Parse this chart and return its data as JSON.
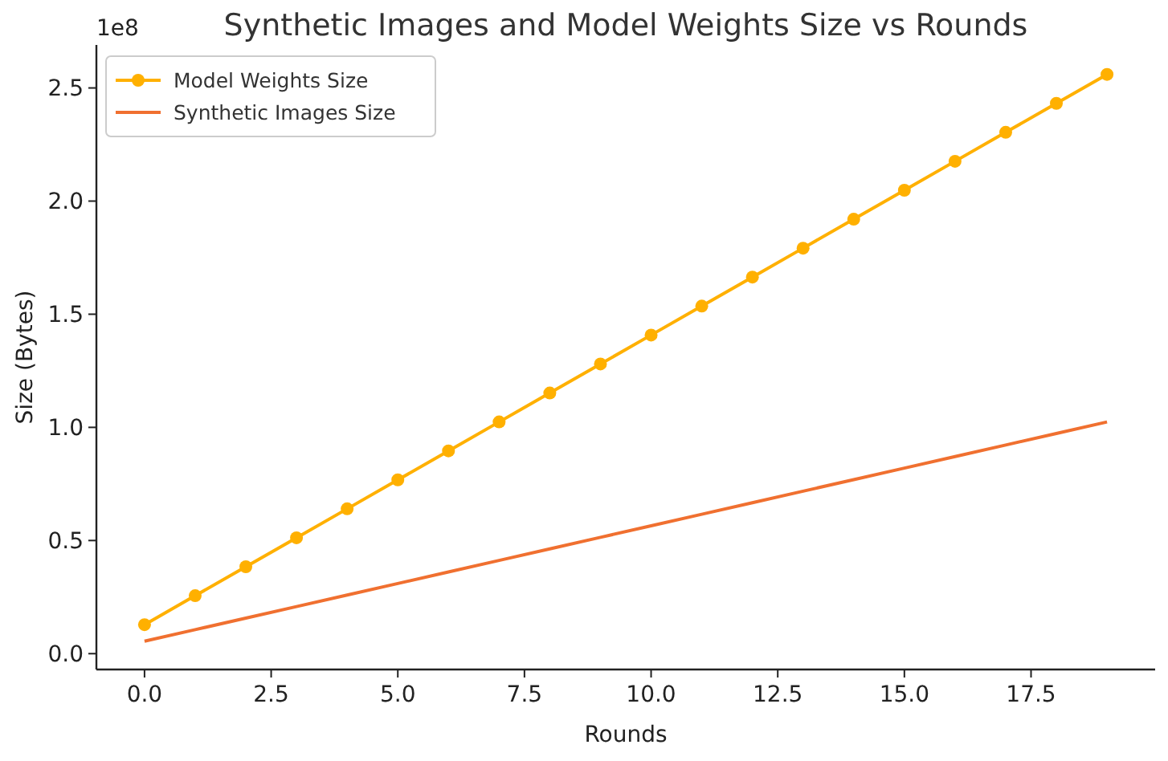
{
  "chart_data": {
    "type": "line",
    "title": "Synthetic Images and Model Weights Size vs Rounds",
    "xlabel": "Rounds",
    "ylabel": "Size (Bytes)",
    "annotations": [
      "1e8"
    ],
    "x": [
      0,
      1,
      2,
      3,
      4,
      5,
      6,
      7,
      8,
      9,
      10,
      11,
      12,
      13,
      14,
      15,
      16,
      17,
      18,
      19
    ],
    "series": [
      {
        "name": "Model Weights Size",
        "color": "#ffb000",
        "marker": "circle",
        "values": [
          0.128,
          0.256,
          0.384,
          0.512,
          0.64,
          0.768,
          0.896,
          1.024,
          1.152,
          1.28,
          1.408,
          1.536,
          1.664,
          1.792,
          1.92,
          2.048,
          2.176,
          2.304,
          2.432,
          2.56
        ]
      },
      {
        "name": "Synthetic Images Size",
        "color": "#f07030",
        "marker": "none",
        "values": [
          0.055,
          0.106,
          0.157,
          0.208,
          0.259,
          0.31,
          0.361,
          0.412,
          0.463,
          0.514,
          0.565,
          0.616,
          0.667,
          0.718,
          0.769,
          0.82,
          0.871,
          0.922,
          0.973,
          1.024
        ]
      }
    ],
    "xlim": [
      -0.95,
      19.95
    ],
    "ylim": [
      -0.07,
      2.69
    ],
    "xticks": [
      {
        "value": 0,
        "label": "0.0"
      },
      2.5,
      {
        "value": 5,
        "label": "5.0"
      },
      7.5,
      {
        "value": 10,
        "label": "10.0"
      },
      12.5,
      {
        "value": 15,
        "label": "15.0"
      },
      17.5
    ],
    "yticks": [
      {
        "value": 0,
        "label": "0.0"
      },
      0.5,
      {
        "value": 1,
        "label": "1.0"
      },
      1.5,
      {
        "value": 2,
        "label": "2.0"
      },
      2.5
    ],
    "grid": false,
    "legend": "top left"
  }
}
